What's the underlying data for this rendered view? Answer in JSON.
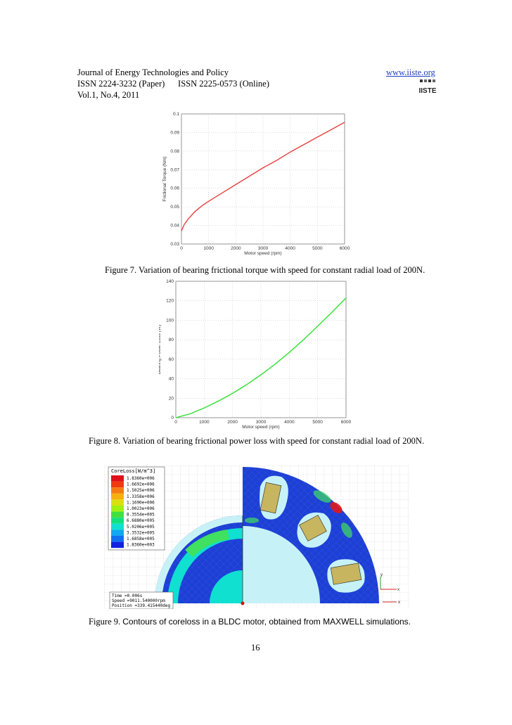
{
  "header": {
    "journal": "Journal of Energy Technologies and Policy",
    "issn": "ISSN 2224-3232 (Paper)      ISSN 2225-0573 (Online)",
    "volume": "Vol.1, No.4, 2011",
    "website": "www.iiste.org",
    "logo_text": "IISTE"
  },
  "figure7": {
    "caption": "Figure 7. Variation of bearing frictional torque with speed for constant radial load of 200N."
  },
  "figure8": {
    "caption": "Figure 8. Variation of bearing frictional power loss with speed for constant radial load of 200N."
  },
  "figure9": {
    "caption_prefix": "Figure 9. ",
    "caption_rest": "Contours of coreloss in a BLDC motor, obtained from MAXWELL simulations.",
    "legend_title": "CoreLoss[W/m^3]",
    "legend_values": [
      "1.8360e+006",
      "1.6692e+006",
      "1.5025e+006",
      "1.3358e+006",
      "1.1690e+006",
      "1.0023e+006",
      "8.3554e+005",
      "6.6880e+005",
      "5.0206e+005",
      "3.3532e+005",
      "1.6858e+005",
      "1.8360e+003"
    ],
    "legend_colors": [
      "#e0101a",
      "#f03a10",
      "#f77a10",
      "#f8b010",
      "#d8e010",
      "#a0f010",
      "#40e040",
      "#10e080",
      "#10e0d0",
      "#10a8f0",
      "#1070f0",
      "#1020e0"
    ],
    "info_time": "Time   =0.006s",
    "info_speed": "Speed   =9011.540000rpm",
    "info_position": "Position =339.415440deg",
    "axis_y": "y",
    "axis_x": "x"
  },
  "page_number": "16",
  "chart_data": [
    {
      "type": "line",
      "xlabel": "Motor speed (rpm)",
      "ylabel": "Frictional Torque (Nm)",
      "xlim": [
        0,
        6000
      ],
      "ylim": [
        0.03,
        0.1
      ],
      "xticks": [
        0,
        1000,
        2000,
        3000,
        4000,
        5000,
        6000
      ],
      "yticks": [
        0.03,
        0.04,
        0.05,
        0.06,
        0.07,
        0.08,
        0.09,
        0.1
      ],
      "grid": true,
      "color": "#e84040",
      "x": [
        0,
        100,
        250,
        500,
        750,
        1000,
        1500,
        2000,
        2500,
        3000,
        3500,
        4000,
        4500,
        5000,
        5500,
        6000
      ],
      "y": [
        0.037,
        0.0405,
        0.0435,
        0.0475,
        0.0505,
        0.053,
        0.0575,
        0.062,
        0.0665,
        0.071,
        0.075,
        0.0795,
        0.0835,
        0.0875,
        0.0915,
        0.0955
      ]
    },
    {
      "type": "line",
      "xlabel": "Motor speed (rpm)",
      "ylabel": "Bearing Power Loss (W)",
      "xlim": [
        0,
        6000
      ],
      "ylim": [
        0,
        140
      ],
      "xticks": [
        0,
        1000,
        2000,
        3000,
        4000,
        5000,
        6000
      ],
      "yticks": [
        0,
        20,
        40,
        60,
        80,
        100,
        120,
        140
      ],
      "grid": true,
      "color": "#30e030",
      "x": [
        0,
        500,
        1000,
        1500,
        2000,
        2500,
        3000,
        3500,
        4000,
        4500,
        5000,
        5500,
        6000
      ],
      "y": [
        0,
        4,
        10,
        17,
        25,
        34,
        44,
        55,
        67,
        80,
        94,
        108,
        123
      ]
    }
  ]
}
